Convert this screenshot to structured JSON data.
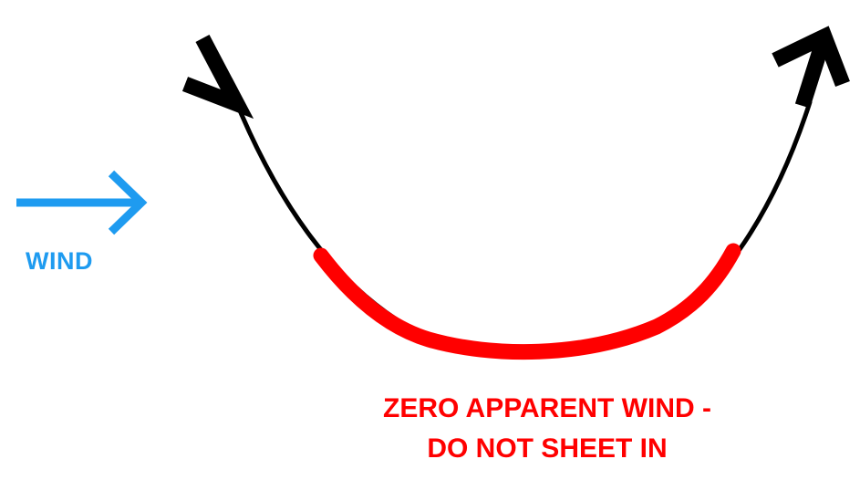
{
  "wind": {
    "label": "WIND",
    "color": "#1E9BF0",
    "icon": "arrow-right-icon"
  },
  "path": {
    "color": "#000000",
    "danger_color": "#FF0000",
    "start_icon": "arrow-head-icon",
    "end_icon": "arrow-head-icon"
  },
  "warning": {
    "line1": "ZERO APPARENT WIND -",
    "line2": "DO NOT SHEET IN",
    "color": "#FF0000"
  }
}
